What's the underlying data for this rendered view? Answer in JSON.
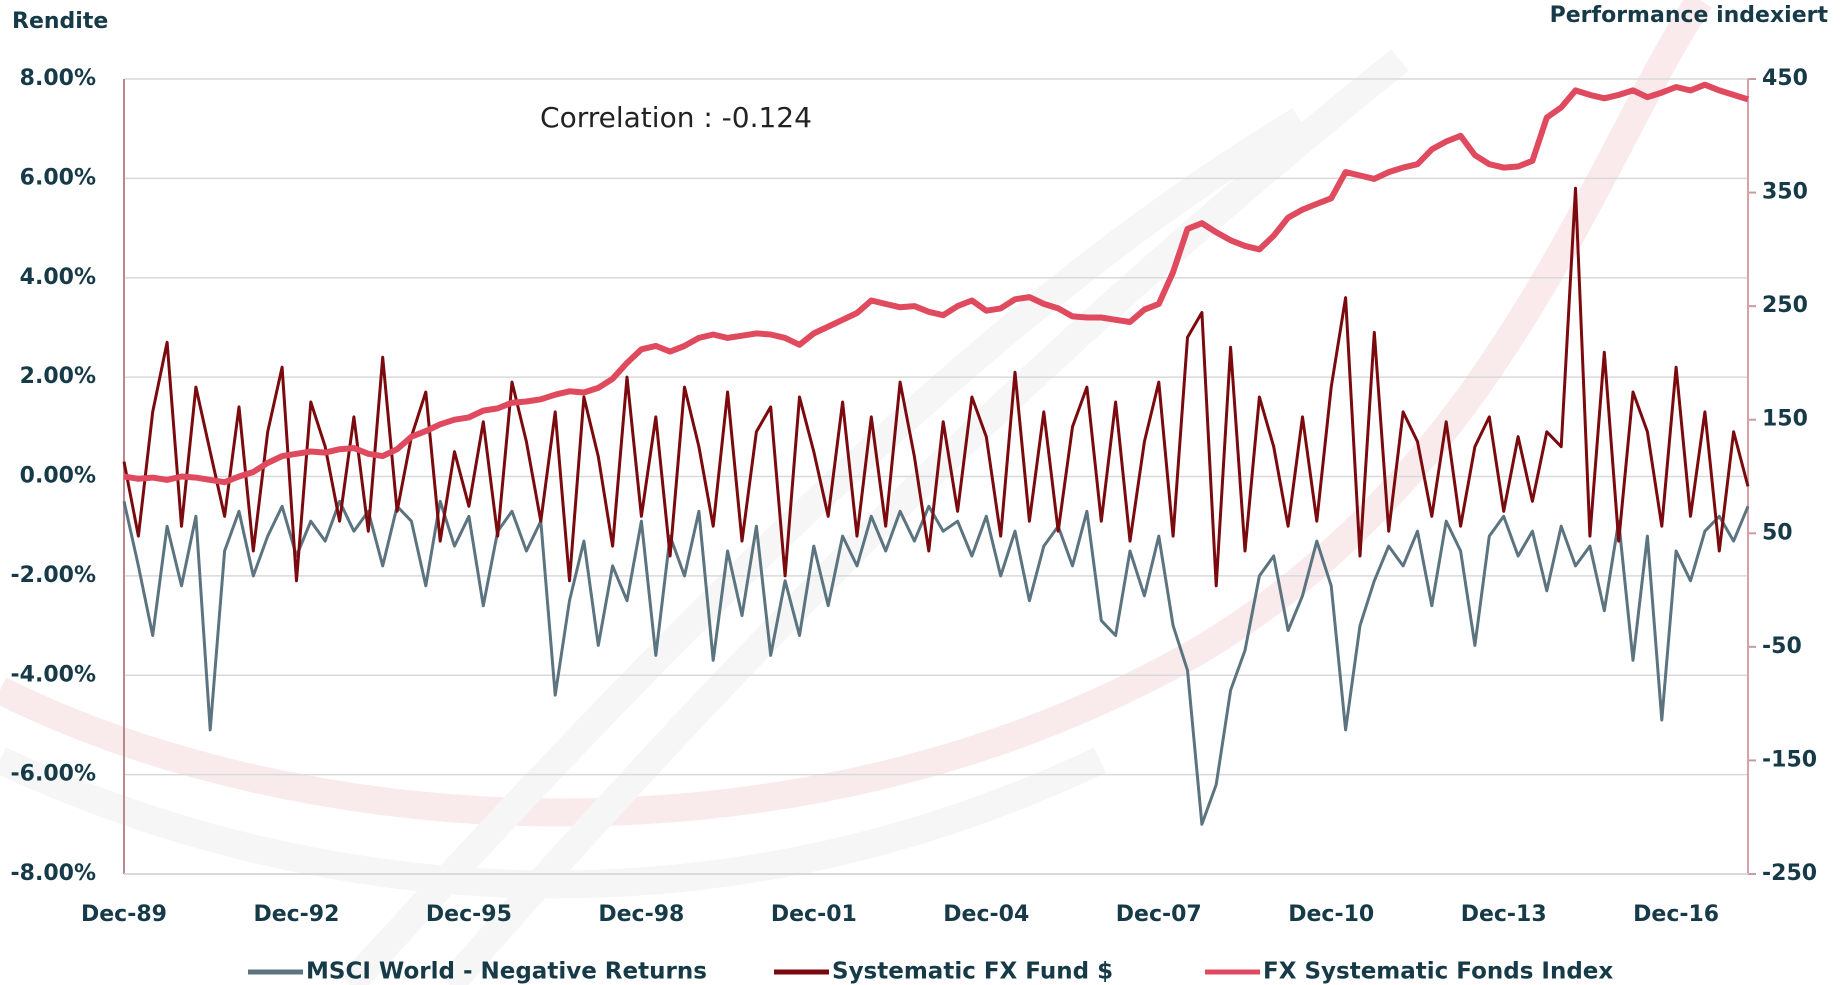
{
  "chart_data": {
    "type": "line",
    "title": "Rendite",
    "y2_title": "Performance indexiert",
    "annotation": "Correlation : -0.124",
    "categories": [
      "Dec-89",
      null,
      null,
      null,
      null,
      null,
      null,
      null,
      null,
      null,
      null,
      null,
      "Dec-92",
      null,
      null,
      null,
      null,
      null,
      null,
      null,
      null,
      null,
      null,
      null,
      "Dec-95",
      null,
      null,
      null,
      null,
      null,
      null,
      null,
      null,
      null,
      null,
      null,
      "Dec-98",
      null,
      null,
      null,
      null,
      null,
      null,
      null,
      null,
      null,
      null,
      null,
      "Dec-01",
      null,
      null,
      null,
      null,
      null,
      null,
      null,
      null,
      null,
      null,
      null,
      "Dec-04",
      null,
      null,
      null,
      null,
      null,
      null,
      null,
      null,
      null,
      null,
      null,
      "Dec-07",
      null,
      null,
      null,
      null,
      null,
      null,
      null,
      null,
      null,
      null,
      null,
      "Dec-10",
      null,
      null,
      null,
      null,
      null,
      null,
      null,
      null,
      null,
      null,
      null,
      "Dec-13",
      null,
      null,
      null,
      null,
      null,
      null,
      null,
      null,
      null,
      null,
      null,
      "Dec-16",
      null,
      null,
      null,
      null,
      null
    ],
    "ylim": [
      -8,
      8
    ],
    "yticks": [
      {
        "value": -8,
        "label": "-8.00%"
      },
      {
        "value": -6,
        "label": "-6.00%"
      },
      {
        "value": -4,
        "label": "-4.00%"
      },
      {
        "value": -2,
        "label": "-2.00%"
      },
      {
        "value": 0,
        "label": "0.00%"
      },
      {
        "value": 2,
        "label": "2.00%"
      },
      {
        "value": 4,
        "label": "4.00%"
      },
      {
        "value": 6,
        "label": "6.00%"
      },
      {
        "value": 8,
        "label": "8.00%"
      }
    ],
    "y2lim": [
      -250,
      450
    ],
    "y2ticks": [
      -250,
      -150,
      -50,
      50,
      150,
      250,
      350,
      450
    ],
    "grid": true,
    "legend": "bottom",
    "series": [
      {
        "name": "MSCI World - Negative Returns",
        "color": "#5b7480",
        "values": [
          -0.5,
          -1.8,
          -3.2,
          -1.0,
          -2.2,
          -0.8,
          -5.1,
          -1.5,
          -0.7,
          -2.0,
          -1.2,
          -0.6,
          -1.6,
          -0.9,
          -1.3,
          -0.5,
          -1.1,
          -0.7,
          -1.8,
          -0.6,
          -0.9,
          -2.2,
          -0.5,
          -1.4,
          -0.8,
          -2.6,
          -1.1,
          -0.7,
          -1.5,
          -0.9,
          -4.4,
          -2.5,
          -1.3,
          -3.4,
          -1.8,
          -2.5,
          -0.9,
          -3.6,
          -1.2,
          -2.0,
          -0.7,
          -3.7,
          -1.5,
          -2.8,
          -1.0,
          -3.6,
          -2.1,
          -3.2,
          -1.4,
          -2.6,
          -1.2,
          -1.8,
          -0.8,
          -1.5,
          -0.7,
          -1.3,
          -0.6,
          -1.1,
          -0.9,
          -1.6,
          -0.8,
          -2.0,
          -1.1,
          -2.5,
          -1.4,
          -1.0,
          -1.8,
          -0.7,
          -2.9,
          -3.2,
          -1.5,
          -2.4,
          -1.2,
          -3.0,
          -3.9,
          -7.0,
          -6.2,
          -4.3,
          -3.5,
          -2.0,
          -1.6,
          -3.1,
          -2.4,
          -1.3,
          -2.2,
          -5.1,
          -3.0,
          -2.1,
          -1.4,
          -1.8,
          -1.1,
          -2.6,
          -0.9,
          -1.5,
          -3.4,
          -1.2,
          -0.8,
          -1.6,
          -1.1,
          -2.3,
          -1.0,
          -1.8,
          -1.4,
          -2.7,
          -0.9,
          -3.7,
          -1.2,
          -4.9,
          -1.5,
          -2.1,
          -1.1,
          -0.8,
          -1.3,
          -0.6
        ]
      },
      {
        "name": "Systematic FX Fund $",
        "color": "#7a0a0e",
        "values": [
          0.3,
          -1.2,
          1.3,
          2.7,
          -1.0,
          1.8,
          0.5,
          -0.8,
          1.4,
          -1.5,
          0.9,
          2.2,
          -2.1,
          1.5,
          0.6,
          -0.9,
          1.2,
          -1.1,
          2.4,
          -0.7,
          0.8,
          1.7,
          -1.3,
          0.5,
          -0.6,
          1.1,
          -1.2,
          1.9,
          0.7,
          -0.9,
          1.3,
          -2.1,
          1.6,
          0.4,
          -1.4,
          2.0,
          -0.8,
          1.2,
          -1.6,
          1.8,
          0.6,
          -1.0,
          1.7,
          -1.3,
          0.9,
          1.4,
          -2.0,
          1.6,
          0.5,
          -0.8,
          1.5,
          -1.2,
          1.2,
          -1.0,
          1.9,
          0.4,
          -1.5,
          1.1,
          -0.7,
          1.6,
          0.8,
          -1.2,
          2.1,
          -0.9,
          1.3,
          -1.1,
          1.0,
          1.8,
          -0.9,
          1.5,
          -1.3,
          0.7,
          1.9,
          -1.2,
          2.8,
          3.3,
          -2.2,
          2.6,
          -1.5,
          1.6,
          0.6,
          -1.0,
          1.2,
          -0.9,
          1.8,
          3.6,
          -1.6,
          2.9,
          -1.1,
          1.3,
          0.7,
          -0.8,
          1.1,
          -1.0,
          0.6,
          1.2,
          -0.7,
          0.8,
          -0.5,
          0.9,
          0.6,
          5.8,
          -1.2,
          2.5,
          -1.3,
          1.7,
          0.9,
          -1.0,
          2.2,
          -0.8,
          1.3,
          -1.5,
          0.9,
          -0.2
        ]
      },
      {
        "name": "FX Systematic Fonds Index",
        "color": "#e04a5f",
        "axis": "y2",
        "values": [
          100,
          98,
          99,
          97,
          100,
          99,
          97,
          95,
          100,
          104,
          112,
          118,
          120,
          122,
          121,
          124,
          125,
          120,
          118,
          124,
          135,
          140,
          146,
          150,
          152,
          158,
          160,
          165,
          166,
          168,
          172,
          175,
          174,
          178,
          186,
          200,
          212,
          215,
          210,
          215,
          222,
          225,
          222,
          224,
          226,
          225,
          222,
          216,
          226,
          232,
          238,
          244,
          255,
          252,
          249,
          250,
          245,
          242,
          250,
          255,
          246,
          248,
          256,
          258,
          252,
          248,
          241,
          240,
          240,
          238,
          236,
          247,
          252,
          280,
          318,
          323,
          315,
          308,
          303,
          300,
          312,
          328,
          335,
          340,
          345,
          368,
          365,
          362,
          368,
          372,
          375,
          388,
          395,
          400,
          383,
          375,
          372,
          373,
          378,
          416,
          425,
          440,
          436,
          433,
          436,
          440,
          434,
          438,
          443,
          440,
          445,
          440,
          436,
          432
        ]
      }
    ]
  }
}
